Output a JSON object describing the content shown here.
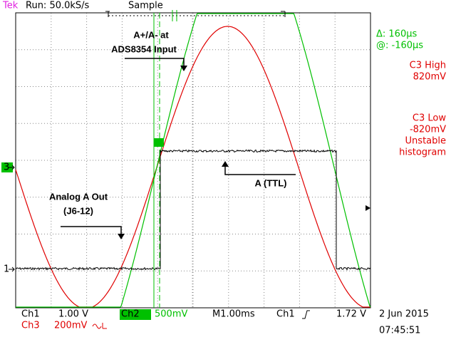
{
  "header": {
    "brand": "Tek",
    "status": "Run: 50.0kS/s",
    "mode": "Sample"
  },
  "annotations": {
    "input_line1": "A+/A- at",
    "input_line2": "ADS8354 Input",
    "ttl": "A (TTL)",
    "analog_line1": "Analog A Out",
    "analog_line2": "(J6-12)"
  },
  "markers": {
    "ch3": "3",
    "ch1": "1"
  },
  "readouts": {
    "delta": "Δ: 160μs",
    "at": "@: -160μs",
    "high_label": "C3 High",
    "high_value": "820mV",
    "low_label": "C3 Low",
    "low_value": "-820mV",
    "note1": "Unstable",
    "note2": "histogram"
  },
  "footer": {
    "ch1": "Ch1",
    "ch1_scale": "1.00 V",
    "ch2": "Ch2",
    "ch2_scale": "500mV",
    "timebase": "M1.00ms",
    "trig_source": "Ch1",
    "trig_level": "1.72 V",
    "ch3": "Ch3",
    "ch3_scale": "200mV",
    "date": "2 Jun 2015",
    "time": "07:45:51"
  }
}
